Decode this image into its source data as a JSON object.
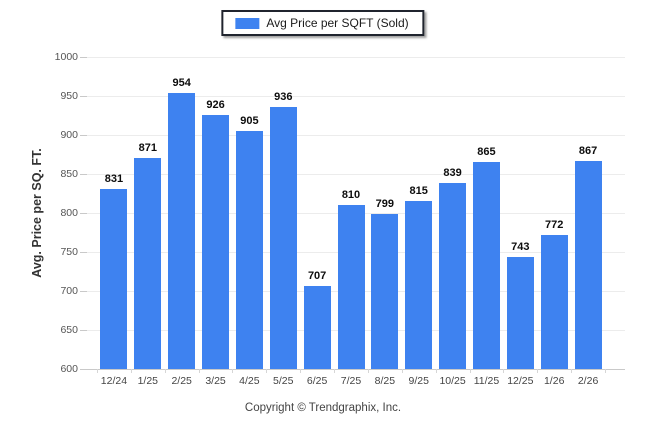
{
  "chart_data": {
    "type": "bar",
    "title": "",
    "categories": [
      "12/24",
      "1/25",
      "2/25",
      "3/25",
      "4/25",
      "5/25",
      "6/25",
      "7/25",
      "8/25",
      "9/25",
      "10/25",
      "11/25",
      "12/25",
      "1/26",
      "2/26"
    ],
    "values": [
      831,
      871,
      954,
      926,
      905,
      936,
      707,
      810,
      799,
      815,
      839,
      865,
      743,
      772,
      867
    ],
    "series_name": "Avg Price per SQFT (Sold)",
    "xlabel": "",
    "ylabel": "Avg. Price per SQ. FT.",
    "ylim": [
      600,
      1000
    ],
    "yticks": [
      600,
      650,
      700,
      750,
      800,
      850,
      900,
      950,
      1000
    ],
    "grid": true,
    "legend_position": "top-center",
    "bar_color": "#3e82f0",
    "data_labels": true
  },
  "legend": {
    "label": "Avg Price per SQFT (Sold)",
    "swatch_color": "#3e82f0"
  },
  "axes": {
    "y_title": "Avg. Price per SQ. FT."
  },
  "footer": {
    "copyright": "Copyright © Trendgraphix, Inc."
  },
  "colors": {
    "bar": "#3e82f0",
    "gridline": "#ececec",
    "axis_line": "#c9c9c9",
    "legend_border": "#20242e"
  }
}
